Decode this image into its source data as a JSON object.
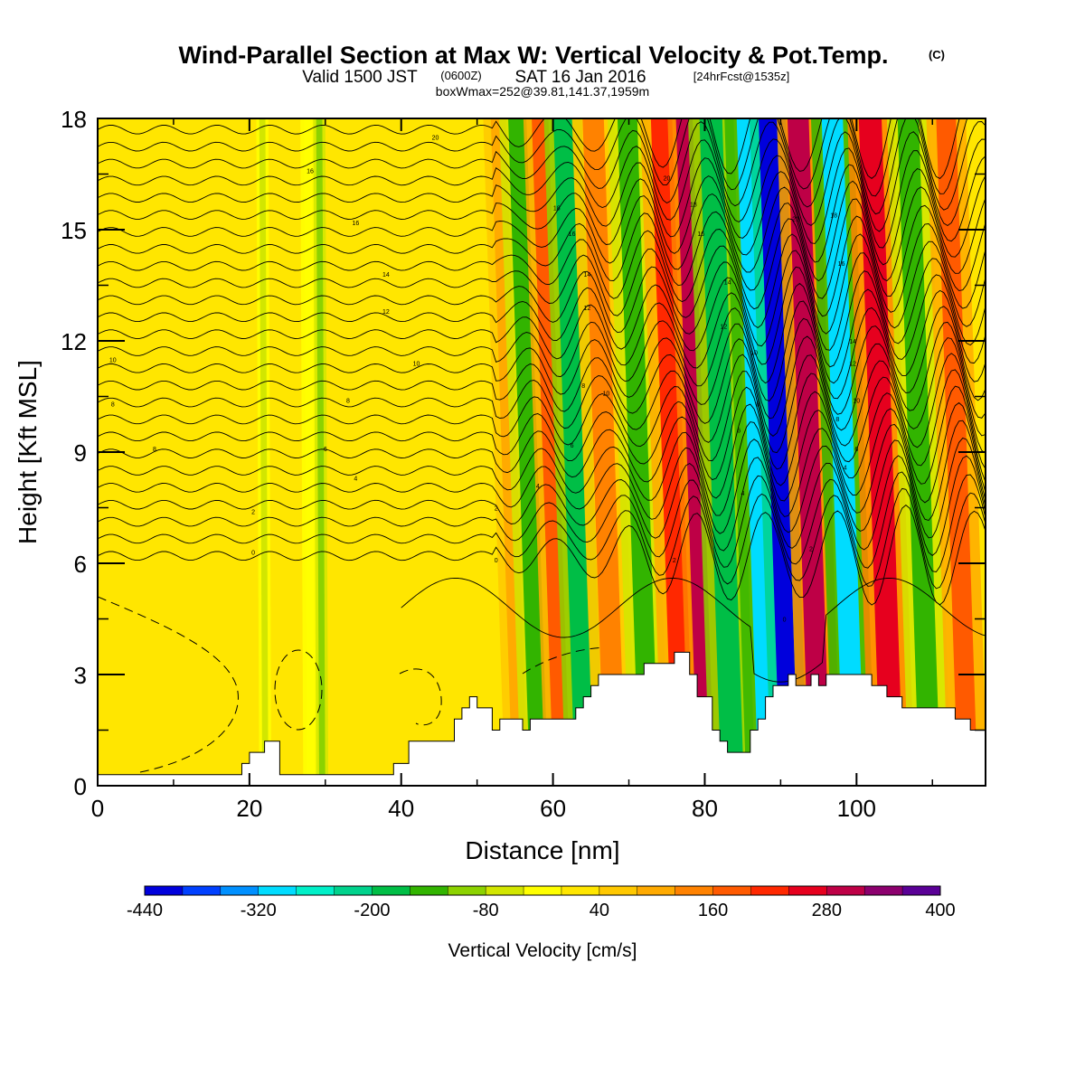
{
  "title": {
    "main": "Wind-Parallel Section at Max W: Vertical Velocity & Pot.Temp.",
    "main_tag": "(C)",
    "line2_valid": "Valid 1500 JST",
    "line2_utc": "(0600Z)",
    "line2_date": "SAT 16 Jan 2016",
    "line2_fcst": "[24hrFcst@1535z]",
    "line3": "boxWmax=252@39.81,141.37,1959m"
  },
  "chart_data": {
    "type": "heatmap",
    "xlabel": "Distance [nm]",
    "ylabel": "Height [Kft MSL]",
    "xlim": [
      0,
      117
    ],
    "ylim": [
      0,
      18
    ],
    "x_ticks": [
      0,
      20,
      40,
      60,
      80,
      100
    ],
    "y_ticks": [
      0,
      3,
      6,
      9,
      12,
      15,
      18
    ],
    "colorbar": {
      "title": "Vertical Velocity [cm/s]",
      "min": -440,
      "max": 400,
      "step": 40,
      "tick_labels": [
        "-440",
        "-320",
        "-200",
        "-80",
        "40",
        "160",
        "280",
        "400"
      ],
      "tick_values": [
        -440,
        -320,
        -200,
        -80,
        40,
        160,
        280,
        400
      ],
      "colors": [
        "#0000dc",
        "#0040ff",
        "#0090ff",
        "#00dcff",
        "#00f0c8",
        "#00d28c",
        "#00be46",
        "#32b400",
        "#8cd200",
        "#d2e600",
        "#ffff00",
        "#ffe600",
        "#ffc800",
        "#ffaa00",
        "#ff8200",
        "#ff5a00",
        "#ff2800",
        "#e6001e",
        "#be0046",
        "#8c006e",
        "#5a0096"
      ]
    },
    "vertical_velocity_cells": [
      {
        "x": 28,
        "w": 1.0,
        "v": -40
      },
      {
        "x": 29.5,
        "w": 0.8,
        "v": -90
      },
      {
        "x": 22,
        "w": 0.8,
        "v": -80
      },
      {
        "x": 55,
        "w": 2.0,
        "v": 100
      },
      {
        "x": 57.5,
        "w": 2.4,
        "v": -160
      },
      {
        "x": 60.5,
        "w": 2.2,
        "v": 160
      },
      {
        "x": 63.5,
        "w": 2.5,
        "v": -200
      },
      {
        "x": 67.5,
        "w": 2.8,
        "v": 140
      },
      {
        "x": 72,
        "w": 2.6,
        "v": -160
      },
      {
        "x": 76.5,
        "w": 2.8,
        "v": 200
      },
      {
        "x": 79.5,
        "w": 2.2,
        "v": 280
      },
      {
        "x": 83,
        "w": 3.0,
        "v": -200
      },
      {
        "x": 88,
        "w": 3.2,
        "v": -320
      },
      {
        "x": 90.5,
        "w": 2.4,
        "v": -440
      },
      {
        "x": 94.5,
        "w": 2.8,
        "v": 300
      },
      {
        "x": 99,
        "w": 2.8,
        "v": -300
      },
      {
        "x": 104,
        "w": 3.0,
        "v": 260
      },
      {
        "x": 109,
        "w": 2.8,
        "v": -160
      },
      {
        "x": 114,
        "w": 2.6,
        "v": 160
      }
    ],
    "potential_temperature_contours": {
      "units": "C",
      "levels": [
        -2,
        0,
        2,
        4,
        6,
        8,
        10,
        12,
        14,
        16,
        18,
        20
      ],
      "labels": [
        {
          "x": 2,
          "y": 11.5,
          "text": "10"
        },
        {
          "x": 2,
          "y": 10.3,
          "text": "8"
        },
        {
          "x": 7.5,
          "y": 9.1,
          "text": "8"
        },
        {
          "x": 28,
          "y": 16.6,
          "text": "16"
        },
        {
          "x": 34,
          "y": 15.2,
          "text": "16"
        },
        {
          "x": 38,
          "y": 13.8,
          "text": "14"
        },
        {
          "x": 38,
          "y": 12.8,
          "text": "12"
        },
        {
          "x": 42,
          "y": 11.4,
          "text": "10"
        },
        {
          "x": 33,
          "y": 10.4,
          "text": "8"
        },
        {
          "x": 30,
          "y": 9.1,
          "text": "6"
        },
        {
          "x": 34,
          "y": 8.3,
          "text": "4"
        },
        {
          "x": 20.5,
          "y": 7.4,
          "text": "2"
        },
        {
          "x": 20.5,
          "y": 6.3,
          "text": "0"
        },
        {
          "x": 44.5,
          "y": 17.5,
          "text": "20"
        },
        {
          "x": 60.5,
          "y": 15.6,
          "text": "18"
        },
        {
          "x": 62.5,
          "y": 14.9,
          "text": "16"
        },
        {
          "x": 64.5,
          "y": 13.8,
          "text": "14"
        },
        {
          "x": 64.5,
          "y": 12.9,
          "text": "12"
        },
        {
          "x": 67,
          "y": 10.6,
          "text": "10"
        },
        {
          "x": 64,
          "y": 10.8,
          "text": "8"
        },
        {
          "x": 62.5,
          "y": 9.2,
          "text": "6"
        },
        {
          "x": 58,
          "y": 8.1,
          "text": "4"
        },
        {
          "x": 52.5,
          "y": 7.5,
          "text": "2"
        },
        {
          "x": 52.5,
          "y": 6.1,
          "text": "0"
        },
        {
          "x": 75,
          "y": 16.4,
          "text": "20"
        },
        {
          "x": 78.5,
          "y": 15.7,
          "text": "18"
        },
        {
          "x": 79.5,
          "y": 14.9,
          "text": "16"
        },
        {
          "x": 83,
          "y": 13.6,
          "text": "14"
        },
        {
          "x": 82.5,
          "y": 12.4,
          "text": "12"
        },
        {
          "x": 86.5,
          "y": 11.7,
          "text": "10"
        },
        {
          "x": 87,
          "y": 10.3,
          "text": "8"
        },
        {
          "x": 84.5,
          "y": 9.6,
          "text": "6"
        },
        {
          "x": 85,
          "y": 7.9,
          "text": "4"
        },
        {
          "x": 76,
          "y": 6.1,
          "text": "2"
        },
        {
          "x": 90.5,
          "y": 4.5,
          "text": "0"
        },
        {
          "x": 92,
          "y": 15.3,
          "text": "20"
        },
        {
          "x": 97,
          "y": 15.4,
          "text": "18"
        },
        {
          "x": 98,
          "y": 14.1,
          "text": "16"
        },
        {
          "x": 99.5,
          "y": 12.0,
          "text": "14"
        },
        {
          "x": 99.5,
          "y": 11.4,
          "text": "12"
        },
        {
          "x": 100,
          "y": 10.4,
          "text": "10"
        },
        {
          "x": 97.5,
          "y": 9.9,
          "text": "8"
        },
        {
          "x": 100,
          "y": 9.1,
          "text": "6"
        },
        {
          "x": 98.5,
          "y": 8.6,
          "text": "4"
        },
        {
          "x": 94,
          "y": 6.4,
          "text": "2"
        }
      ]
    },
    "terrain_profile": {
      "x": [
        0,
        16,
        16,
        19,
        19,
        20,
        20,
        22,
        22,
        24,
        24,
        39,
        39,
        41,
        41,
        47,
        47,
        48,
        48,
        49,
        49,
        50,
        50,
        52,
        52,
        53,
        53,
        56,
        56,
        57,
        57,
        58,
        58,
        59,
        59,
        63,
        63,
        64,
        64,
        65,
        65,
        66,
        66,
        67,
        67,
        72,
        72,
        76,
        76,
        78,
        78,
        79,
        79,
        81,
        81,
        82,
        82,
        83,
        83,
        86,
        86,
        87,
        87,
        88,
        88,
        89,
        89,
        91,
        91,
        92,
        92,
        94,
        94,
        95,
        95,
        96,
        96,
        102,
        102,
        104,
        104,
        106,
        106,
        113,
        113,
        115,
        115,
        117
      ],
      "y": [
        0.3,
        0.3,
        0.3,
        0.3,
        0.6,
        0.6,
        0.9,
        0.9,
        1.2,
        1.2,
        0.3,
        0.3,
        0.6,
        0.6,
        1.2,
        1.2,
        1.8,
        1.8,
        2.1,
        2.1,
        2.4,
        2.4,
        2.1,
        2.1,
        1.5,
        1.5,
        1.8,
        1.8,
        1.5,
        1.5,
        1.8,
        1.8,
        1.8,
        1.8,
        1.8,
        1.8,
        2.1,
        2.1,
        2.4,
        2.4,
        2.7,
        2.7,
        3.0,
        3.0,
        3.0,
        3.0,
        3.3,
        3.3,
        3.6,
        3.6,
        3.0,
        3.0,
        2.4,
        2.4,
        1.5,
        1.5,
        1.2,
        1.2,
        0.9,
        0.9,
        1.5,
        1.5,
        1.8,
        1.8,
        2.4,
        2.4,
        2.7,
        2.7,
        3.0,
        3.0,
        2.7,
        2.7,
        3.0,
        3.0,
        2.7,
        2.7,
        3.0,
        3.0,
        2.7,
        2.7,
        2.4,
        2.4,
        2.1,
        2.1,
        1.8,
        1.8,
        1.5,
        1.5
      ]
    }
  }
}
